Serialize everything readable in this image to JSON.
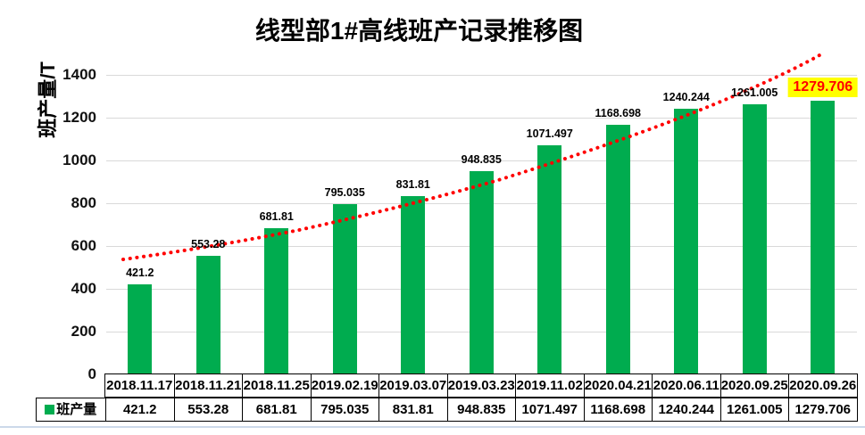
{
  "chart_data": {
    "type": "bar",
    "title": "线型部1#高线班产记录推移图",
    "ylabel": "班产量/T",
    "categories": [
      "2018.11.17",
      "2018.11.21",
      "2018.11.25",
      "2019.02.19",
      "2019.03.07",
      "2019.03.23",
      "2019.11.02",
      "2020.04.21",
      "2020.06.11",
      "2020.09.25",
      "2020.09.26"
    ],
    "series": [
      {
        "name": "班产量",
        "values": [
          421.2,
          553.28,
          681.81,
          795.035,
          831.81,
          948.835,
          1071.497,
          1168.698,
          1240.244,
          1261.005,
          1279.706
        ]
      }
    ],
    "ylim": [
      0,
      1500
    ],
    "yticks": [
      0,
      200,
      400,
      600,
      800,
      1000,
      1200,
      1400
    ],
    "grid": "horizontal-light-gray",
    "data_labels": true,
    "highlighted_label_index": 10,
    "legend_position": "data-table-left",
    "trendline": {
      "style": "dotted",
      "color": "#FF0000"
    },
    "colors": {
      "bar": "#00AC4F",
      "gridline": "#D9D9D9",
      "table_border": "#000000",
      "label_text": "#000000",
      "highlight_bg": "#FFFF00",
      "highlight_text": "#FF0000"
    }
  }
}
